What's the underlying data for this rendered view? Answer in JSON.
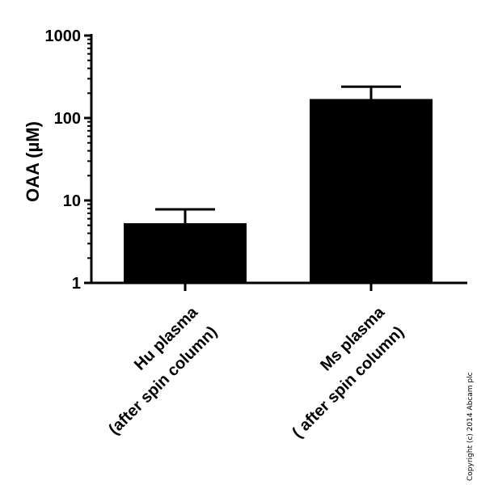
{
  "chart_data": {
    "type": "bar",
    "y_scale": "log",
    "ylim": [
      1,
      1000
    ],
    "yticks": [
      "1",
      "10",
      "100",
      "1000"
    ],
    "ylabel": "OAA (µM)",
    "xlabel": "",
    "title": "",
    "grid": false,
    "categories": [
      [
        "Hu plasma",
        "(after spin column)"
      ],
      [
        "Ms plasma",
        "( after spin column)"
      ]
    ],
    "values": [
      5.3,
      170
    ],
    "errors_upper": [
      7.8,
      240
    ],
    "bar_color": "#000000"
  },
  "copyright": "Copyright (c) 2014 Abcam plc"
}
